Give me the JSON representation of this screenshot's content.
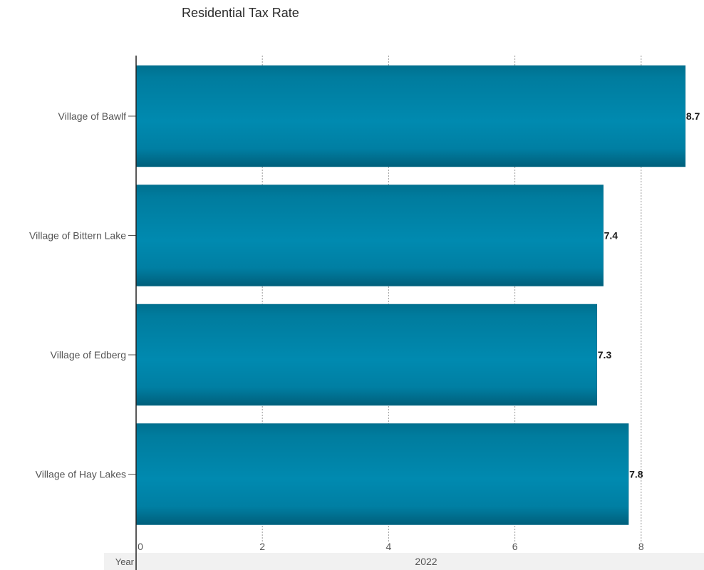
{
  "chart_data": {
    "type": "bar",
    "orientation": "horizontal",
    "title": "Residential Tax Rate",
    "categories": [
      "Village of Bawlf",
      "Village of Bittern Lake",
      "Village of Edberg",
      "Village of Hay Lakes"
    ],
    "values": [
      8.7,
      7.4,
      7.3,
      7.8
    ],
    "value_labels": [
      "8.7",
      "7.4",
      "7.3",
      "7.8"
    ],
    "xlim": [
      0,
      8.8
    ],
    "x_ticks": [
      0,
      2,
      4,
      6,
      8
    ],
    "x_tick_labels": [
      "0",
      "2",
      "4",
      "6",
      "8"
    ],
    "grid": true,
    "footer": {
      "label": "Year",
      "value": "2022"
    },
    "colors": {
      "bar": "#0088ae",
      "bar_edge": "#006a89",
      "grid": "#9a9a9a",
      "axis": "#222222",
      "footer_bg": "#f1f1f1"
    }
  }
}
